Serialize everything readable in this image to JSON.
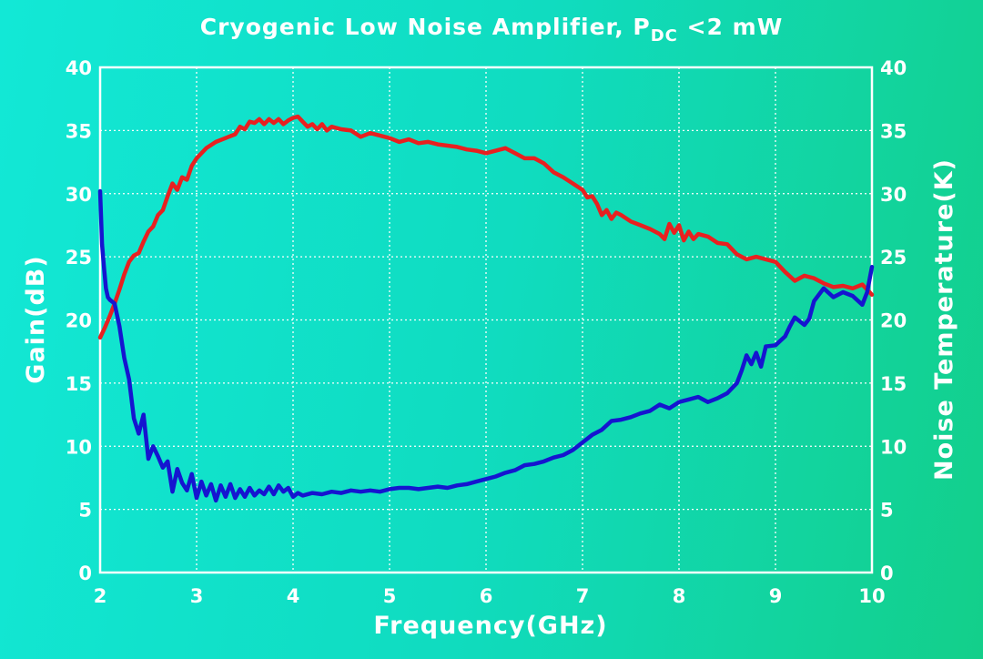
{
  "chart_data": {
    "type": "line",
    "title": "Cryogenic Low Noise Amplifier, P",
    "title_sub": "DC",
    "title_tail": " <2 mW",
    "xlabel": "Frequency(GHz)",
    "ylabel": "Gain(dB)",
    "y2label": "Noise Temperature(K)",
    "xlim": [
      2,
      10
    ],
    "ylim": [
      0,
      40
    ],
    "y2lim": [
      0,
      40
    ],
    "x_ticks": [
      "2",
      "3",
      "4",
      "5",
      "6",
      "7",
      "8",
      "9",
      "10"
    ],
    "y_ticks": [
      "0",
      "5",
      "10",
      "15",
      "20",
      "25",
      "30",
      "35",
      "40"
    ],
    "y2_ticks": [
      "0",
      "5",
      "10",
      "15",
      "20",
      "25",
      "30",
      "35",
      "40"
    ],
    "grid": true,
    "series": [
      {
        "name": "",
        "axis": "left",
        "color": "#e82020",
        "x": [
          2.0,
          2.05,
          2.1,
          2.15,
          2.2,
          2.25,
          2.3,
          2.35,
          2.4,
          2.45,
          2.5,
          2.55,
          2.6,
          2.65,
          2.7,
          2.75,
          2.8,
          2.85,
          2.9,
          2.95,
          3.0,
          3.1,
          3.2,
          3.3,
          3.4,
          3.45,
          3.5,
          3.55,
          3.6,
          3.65,
          3.7,
          3.75,
          3.8,
          3.85,
          3.9,
          3.95,
          4.0,
          4.05,
          4.1,
          4.15,
          4.2,
          4.25,
          4.3,
          4.35,
          4.4,
          4.5,
          4.6,
          4.7,
          4.8,
          4.9,
          5.0,
          5.1,
          5.2,
          5.3,
          5.4,
          5.5,
          5.6,
          5.7,
          5.8,
          5.9,
          6.0,
          6.1,
          6.2,
          6.3,
          6.4,
          6.5,
          6.6,
          6.7,
          6.8,
          6.9,
          7.0,
          7.05,
          7.1,
          7.15,
          7.2,
          7.25,
          7.3,
          7.35,
          7.4,
          7.5,
          7.6,
          7.7,
          7.8,
          7.85,
          7.9,
          7.95,
          8.0,
          8.05,
          8.1,
          8.15,
          8.2,
          8.3,
          8.4,
          8.5,
          8.6,
          8.7,
          8.8,
          8.9,
          9.0,
          9.1,
          9.2,
          9.3,
          9.4,
          9.5,
          9.6,
          9.7,
          9.8,
          9.9,
          10.0
        ],
        "values": [
          18.6,
          19.4,
          20.3,
          21.3,
          22.4,
          23.6,
          24.6,
          25.1,
          25.3,
          26.2,
          27.0,
          27.4,
          28.3,
          28.7,
          29.8,
          30.8,
          30.3,
          31.3,
          31.1,
          32.2,
          32.8,
          33.6,
          34.1,
          34.4,
          34.7,
          35.3,
          35.1,
          35.7,
          35.6,
          35.9,
          35.5,
          35.9,
          35.6,
          35.9,
          35.5,
          35.8,
          36.0,
          36.1,
          35.7,
          35.3,
          35.5,
          35.1,
          35.5,
          35.0,
          35.3,
          35.1,
          35.0,
          34.5,
          34.8,
          34.6,
          34.4,
          34.1,
          34.3,
          34.0,
          34.1,
          33.9,
          33.8,
          33.7,
          33.5,
          33.4,
          33.2,
          33.4,
          33.6,
          33.2,
          32.8,
          32.8,
          32.4,
          31.7,
          31.3,
          30.8,
          30.3,
          29.7,
          29.8,
          29.2,
          28.3,
          28.7,
          28.0,
          28.5,
          28.3,
          27.8,
          27.5,
          27.2,
          26.8,
          26.4,
          27.6,
          26.9,
          27.5,
          26.3,
          27.0,
          26.4,
          26.8,
          26.6,
          26.1,
          26.0,
          25.2,
          24.8,
          25.0,
          24.8,
          24.6,
          23.8,
          23.1,
          23.5,
          23.3,
          22.9,
          22.6,
          22.7,
          22.5,
          22.8,
          22.0
        ]
      },
      {
        "name": "",
        "axis": "right",
        "color": "#1515d0",
        "x": [
          2.0,
          2.02,
          2.04,
          2.06,
          2.08,
          2.1,
          2.15,
          2.2,
          2.25,
          2.3,
          2.35,
          2.4,
          2.45,
          2.5,
          2.55,
          2.6,
          2.65,
          2.7,
          2.75,
          2.8,
          2.85,
          2.9,
          2.95,
          3.0,
          3.05,
          3.1,
          3.15,
          3.2,
          3.25,
          3.3,
          3.35,
          3.4,
          3.45,
          3.5,
          3.55,
          3.6,
          3.65,
          3.7,
          3.75,
          3.8,
          3.85,
          3.9,
          3.95,
          4.0,
          4.05,
          4.1,
          4.2,
          4.3,
          4.4,
          4.5,
          4.6,
          4.7,
          4.8,
          4.9,
          5.0,
          5.1,
          5.2,
          5.3,
          5.4,
          5.5,
          5.6,
          5.7,
          5.8,
          5.9,
          6.0,
          6.1,
          6.2,
          6.3,
          6.4,
          6.5,
          6.6,
          6.7,
          6.8,
          6.9,
          7.0,
          7.1,
          7.2,
          7.3,
          7.4,
          7.5,
          7.6,
          7.7,
          7.8,
          7.9,
          8.0,
          8.1,
          8.2,
          8.3,
          8.4,
          8.5,
          8.6,
          8.65,
          8.7,
          8.75,
          8.8,
          8.85,
          8.9,
          9.0,
          9.1,
          9.15,
          9.2,
          9.3,
          9.35,
          9.4,
          9.5,
          9.6,
          9.7,
          9.8,
          9.9,
          9.95,
          10.0
        ],
        "values": [
          30.2,
          26.0,
          24.2,
          22.5,
          21.8,
          21.6,
          21.3,
          19.5,
          17.0,
          15.3,
          12.2,
          11.0,
          12.5,
          9.0,
          10.0,
          9.2,
          8.3,
          8.8,
          6.4,
          8.2,
          7.1,
          6.5,
          7.8,
          5.9,
          7.2,
          6.1,
          7.0,
          5.7,
          6.9,
          6.0,
          7.0,
          5.9,
          6.6,
          6.0,
          6.7,
          6.1,
          6.5,
          6.2,
          6.8,
          6.2,
          6.9,
          6.4,
          6.7,
          6.0,
          6.3,
          6.1,
          6.3,
          6.2,
          6.4,
          6.3,
          6.5,
          6.4,
          6.5,
          6.4,
          6.6,
          6.7,
          6.7,
          6.6,
          6.7,
          6.8,
          6.7,
          6.9,
          7.0,
          7.2,
          7.4,
          7.6,
          7.9,
          8.1,
          8.5,
          8.6,
          8.8,
          9.1,
          9.3,
          9.7,
          10.3,
          10.9,
          11.3,
          12.0,
          12.1,
          12.3,
          12.6,
          12.8,
          13.3,
          13.0,
          13.5,
          13.7,
          13.9,
          13.5,
          13.8,
          14.2,
          15.0,
          16.0,
          17.2,
          16.5,
          17.4,
          16.3,
          17.9,
          18.0,
          18.7,
          19.5,
          20.2,
          19.6,
          20.1,
          21.5,
          22.5,
          21.8,
          22.2,
          21.9,
          21.2,
          22.2,
          24.2
        ]
      }
    ]
  }
}
